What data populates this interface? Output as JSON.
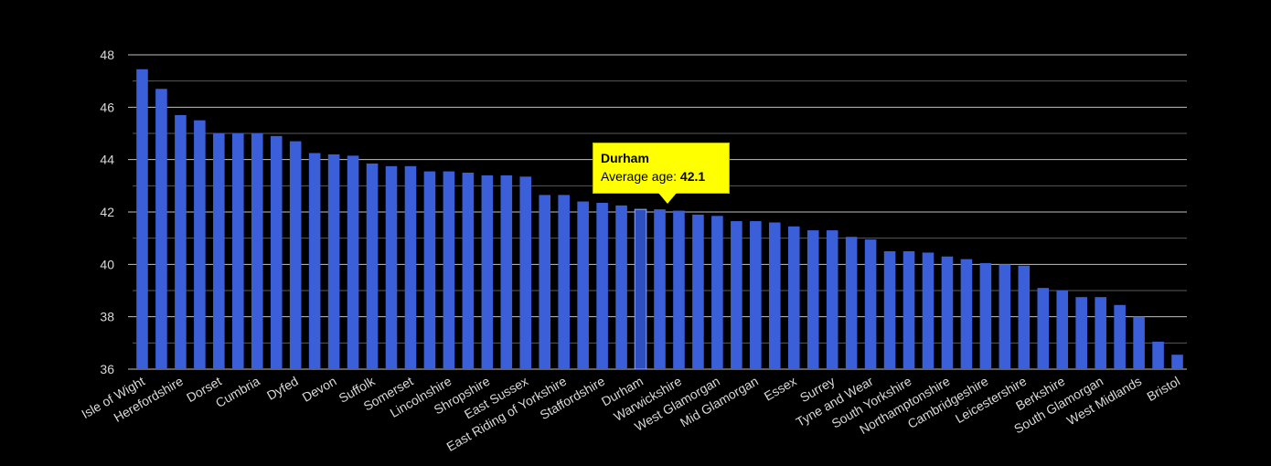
{
  "chart_data": {
    "type": "bar",
    "ylim": [
      36,
      48
    ],
    "yticks": [
      36,
      38,
      40,
      42,
      44,
      46,
      48
    ],
    "bar_color": "#3a5fd9",
    "highlight_color": "#2e4fbf",
    "grid": true,
    "background": "#000000",
    "categories": [
      "Isle of Wight",
      "",
      "Herefordshire",
      "",
      "Dorset",
      "",
      "Cumbria",
      "",
      "Dyfed",
      "",
      "Devon",
      "",
      "Suffolk",
      "",
      "Somerset",
      "",
      "Lincolnshire",
      "",
      "Shropshire",
      "",
      "East Sussex",
      "",
      "East Riding of Yorkshire",
      "",
      "Staffordshire",
      "",
      "Durham",
      "",
      "Warwickshire",
      "",
      "West Glamorgan",
      "",
      "Mid Glamorgan",
      "",
      "Essex",
      "",
      "Surrey",
      "",
      "Tyne and Wear",
      "",
      "South Yorkshire",
      "",
      "Northamptonshire",
      "",
      "Cambridgeshire",
      "",
      "Leicestershire",
      "",
      "Berkshire",
      "",
      "South Glamorgan",
      "",
      "West Midlands",
      "",
      "Bristol"
    ],
    "values": [
      47.45,
      46.7,
      45.7,
      45.5,
      45.0,
      45.0,
      45.0,
      44.9,
      44.7,
      44.25,
      44.2,
      44.15,
      43.85,
      43.75,
      43.75,
      43.55,
      43.55,
      43.5,
      43.4,
      43.4,
      43.35,
      42.65,
      42.65,
      42.4,
      42.35,
      42.25,
      42.1,
      42.1,
      42.05,
      41.9,
      41.85,
      41.65,
      41.65,
      41.6,
      41.45,
      41.3,
      41.3,
      41.05,
      40.95,
      40.5,
      40.5,
      40.45,
      40.3,
      40.2,
      40.05,
      40.0,
      39.95,
      39.1,
      39.0,
      38.75,
      38.75,
      38.45,
      38.0,
      37.05,
      36.55
    ],
    "highlight_index": 26
  },
  "tooltip": {
    "title": "Durham",
    "label": "Average age: ",
    "value": "42.1"
  }
}
